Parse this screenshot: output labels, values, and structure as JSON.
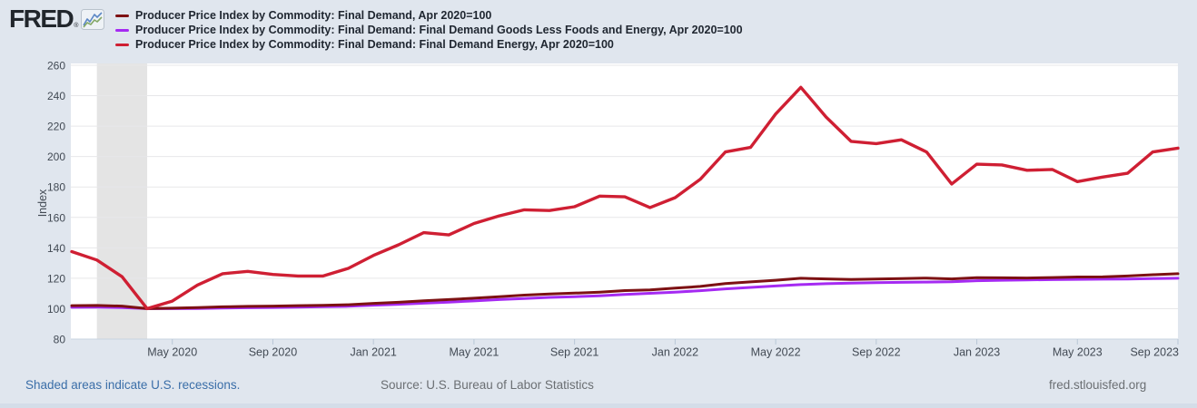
{
  "header": {
    "logo_text": "FRED",
    "logo_reg": "®"
  },
  "footer": {
    "recession_note": "Shaded areas indicate U.S. recessions.",
    "source": "Source: U.S. Bureau of Labor Statistics",
    "site": "fred.stlouisfed.org"
  },
  "chart_data": {
    "type": "line",
    "x_unit": "month",
    "x_start": "2020-01",
    "x_end": "2023-09",
    "x_tick_labels": [
      "May 2020",
      "Sep 2020",
      "Jan 2021",
      "May 2021",
      "Sep 2021",
      "Jan 2022",
      "May 2022",
      "Sep 2022",
      "Jan 2023",
      "May 2023",
      "Sep 2023"
    ],
    "ylabel": "Index",
    "ylim": [
      80,
      260
    ],
    "ytick_step": 20,
    "grid": "horizontal",
    "legend_position": "top-left",
    "recession_band": {
      "start": "2020-02",
      "end": "2020-04"
    },
    "colors": {
      "background": "#e0e6ee",
      "plot_background": "#ffffff",
      "gridline": "#e7e7e9",
      "recession_shading": "#e4e4e4",
      "axis_line": "#c9d4e0",
      "tick_mark": "#b9c7d6",
      "axis_text": "#424a54"
    },
    "series": [
      {
        "name": "Producer Price Index by Commodity: Final Demand, Apr 2020=100",
        "color": "#7d1113",
        "values": [
          102,
          102.1,
          101.7,
          100,
          100.3,
          100.7,
          101.2,
          101.5,
          101.7,
          102,
          102.2,
          102.6,
          103.5,
          104.2,
          105.2,
          106,
          106.9,
          107.9,
          108.9,
          109.6,
          110.2,
          110.9,
          111.9,
          112.3,
          113.5,
          114.6,
          116.5,
          117.6,
          118.7,
          120,
          119.6,
          119.2,
          119.5,
          119.8,
          120.1,
          119.6,
          120.4,
          120.3,
          120.2,
          120.5,
          120.8,
          120.9,
          121.5,
          122.3,
          123
        ]
      },
      {
        "name": "Producer Price Index by Commodity: Final Demand: Final Demand Goods Less Foods and Energy, Apr 2020=100",
        "color": "#a52af2",
        "values": [
          100.9,
          101,
          100.7,
          100,
          100,
          100.1,
          100.4,
          100.6,
          100.8,
          101,
          101.3,
          101.6,
          102.3,
          102.9,
          103.6,
          104.3,
          105.1,
          106,
          106.7,
          107.4,
          107.9,
          108.5,
          109.3,
          110.1,
          110.9,
          111.8,
          113,
          114,
          114.9,
          115.8,
          116.4,
          116.8,
          117.1,
          117.3,
          117.5,
          117.7,
          118.4,
          118.7,
          118.9,
          119.1,
          119.3,
          119.4,
          119.5,
          119.8,
          120
        ]
      },
      {
        "name": "Producer Price Index by Commodity: Final Demand: Final Demand Energy, Apr 2020=100",
        "color": "#cf1f33",
        "values": [
          137.5,
          132,
          121,
          100,
          105,
          115.5,
          123,
          124.5,
          122.5,
          121.5,
          121.5,
          126.5,
          135,
          142,
          150,
          148.5,
          156,
          161,
          165,
          164.5,
          167,
          174,
          173.5,
          166.5,
          173,
          185,
          203,
          206,
          228,
          245.5,
          226,
          210,
          208.5,
          211,
          203,
          182,
          195,
          194.5,
          191,
          191.5,
          183.5,
          186.5,
          189,
          203,
          205.5
        ]
      }
    ]
  }
}
